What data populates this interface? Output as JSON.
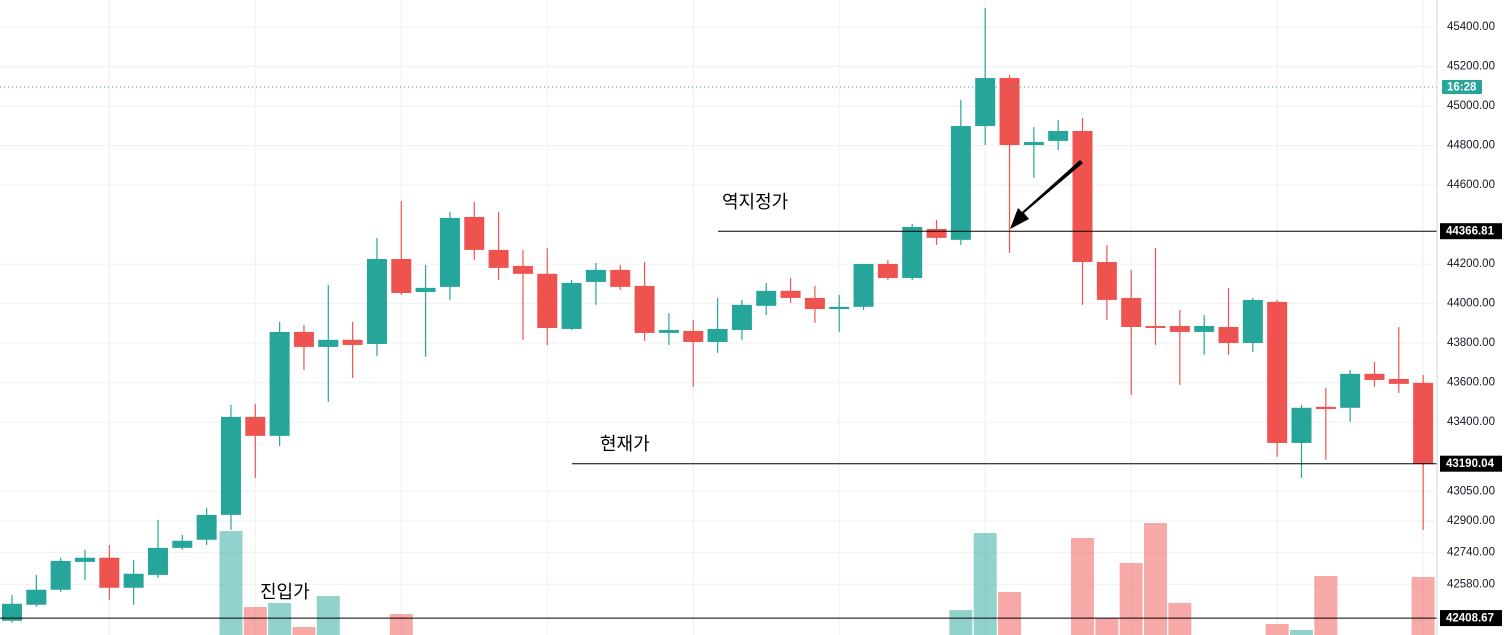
{
  "chart_data": {
    "type": "candlestick",
    "up_color": "#26a69a",
    "down_color": "#ef5350",
    "open": [
      42395,
      42476,
      42552,
      42693,
      42714,
      42562,
      42627,
      42764,
      42805,
      42931,
      43427,
      43331,
      43857,
      43781,
      43817,
      43796,
      44226,
      44059,
      44085,
      44439,
      44272,
      44191,
      44151,
      43872,
      44110,
      44171,
      44090,
      43852,
      43862,
      43806,
      43867,
      43989,
      44065,
      44029,
      43973,
      43984,
      44201,
      44130,
      44378,
      44323,
      44899,
      45142,
      44803,
      44824,
      44874,
      44211,
      44029,
      43887,
      43887,
      43857,
      43882,
      43801,
      44009,
      43295,
      43478,
      43473,
      43645,
      43619,
      43599
    ],
    "high": [
      42526,
      42627,
      42714,
      42754,
      42779,
      42703,
      42906,
      42830,
      42967,
      43488,
      43493,
      43908,
      43892,
      44095,
      43908,
      44333,
      44520,
      44196,
      44464,
      44515,
      44464,
      44272,
      44282,
      44120,
      44206,
      44196,
      44211,
      43953,
      43918,
      44029,
      44019,
      44105,
      44130,
      44090,
      44044,
      44201,
      44221,
      44404,
      44424,
      45031,
      45497,
      45157,
      44894,
      44930,
      44940,
      44297,
      44171,
      44282,
      43968,
      43943,
      44080,
      44029,
      44019,
      43488,
      43574,
      43665,
      43705,
      43882,
      43639
    ],
    "low": [
      42385,
      42466,
      42541,
      42602,
      42501,
      42476,
      42612,
      42754,
      42779,
      42855,
      43118,
      43280,
      43665,
      43503,
      43624,
      43736,
      44044,
      43731,
      44019,
      44221,
      44120,
      43817,
      43791,
      43867,
      43994,
      44070,
      43812,
      43791,
      43579,
      43751,
      43817,
      43943,
      44004,
      43903,
      43857,
      43968,
      44120,
      44120,
      44297,
      44297,
      44803,
      44257,
      44636,
      44778,
      43994,
      43918,
      43538,
      43791,
      43589,
      43741,
      43741,
      43756,
      43225,
      43118,
      43209,
      43402,
      43579,
      43548,
      42855
    ],
    "close": [
      42481,
      42552,
      42698,
      42714,
      42562,
      42633,
      42764,
      42800,
      42931,
      43427,
      43331,
      43857,
      43781,
      43817,
      43791,
      44226,
      44054,
      44080,
      44434,
      44272,
      44181,
      44151,
      43877,
      44105,
      44171,
      44085,
      43852,
      43867,
      43806,
      43872,
      43994,
      44065,
      44029,
      43973,
      43984,
      44201,
      44130,
      44388,
      44333,
      44899,
      45142,
      44803,
      44818,
      44874,
      44211,
      44019,
      43882,
      43877,
      43857,
      43887,
      43801,
      44019,
      43295,
      43473,
      43467,
      43645,
      43614,
      43594,
      43190
    ],
    "volume": [
      0,
      0,
      0,
      0,
      0,
      0,
      0,
      0,
      0,
      104,
      28,
      32,
      8,
      39,
      0,
      0,
      21,
      0,
      0,
      0,
      0,
      0,
      0,
      0,
      0,
      0,
      0,
      0,
      0,
      0,
      0,
      0,
      0,
      0,
      0,
      0,
      0,
      0,
      0,
      25,
      102,
      43,
      0,
      0,
      97,
      17,
      72,
      112,
      32,
      0,
      0,
      0,
      11,
      5,
      59,
      0,
      0,
      0,
      58
    ],
    "ylim": [
      42323,
      45537
    ],
    "yticks": [
      {
        "value": 45400,
        "label": "45400.00"
      },
      {
        "value": 45200,
        "label": "45200.00"
      },
      {
        "value": 45000,
        "label": "45000.00"
      },
      {
        "value": 44800,
        "label": "44800.00"
      },
      {
        "value": 44600,
        "label": "44600.00"
      },
      {
        "value": 44200,
        "label": "44200.00"
      },
      {
        "value": 44000,
        "label": "44000.00"
      },
      {
        "value": 43800,
        "label": "43800.00"
      },
      {
        "value": 43600,
        "label": "43600.00"
      },
      {
        "value": 43400,
        "label": "43400.00"
      },
      {
        "value": 43050,
        "label": "43050.00"
      },
      {
        "value": 42900,
        "label": "42900.00"
      },
      {
        "value": 42740,
        "label": "42740.00"
      },
      {
        "value": 42580,
        "label": "42580.00"
      }
    ],
    "grid": true,
    "countdown": "16:28",
    "price_lines": [
      {
        "value": 44366.81,
        "text": "역지정가"
      },
      {
        "value": 43190.04,
        "text": "현재가"
      },
      {
        "value": 42408.67,
        "text": "진입가"
      }
    ]
  }
}
